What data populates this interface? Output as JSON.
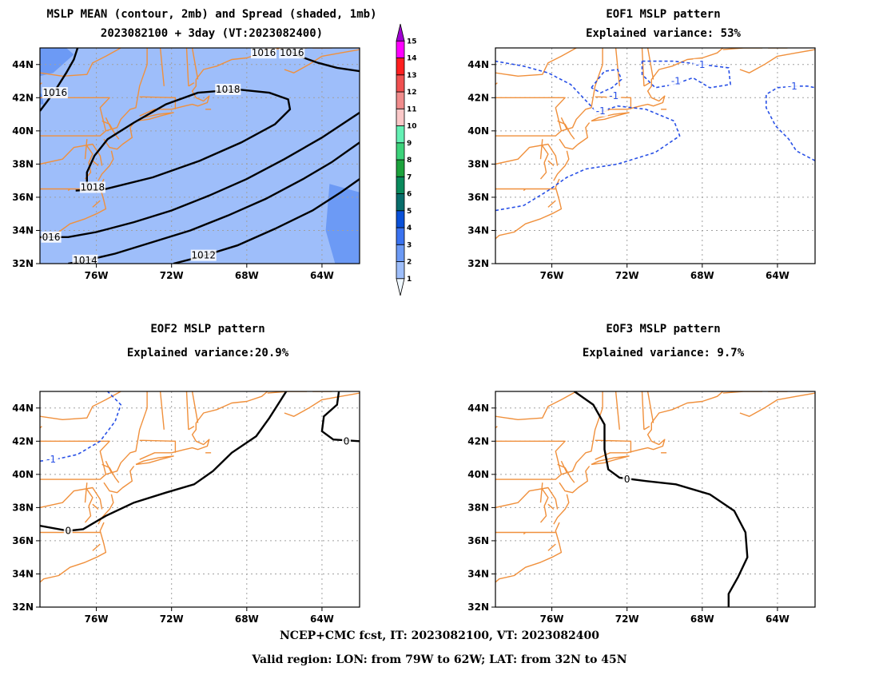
{
  "panels": {
    "p1": {
      "title1": "MSLP MEAN (contour, 2mb) and Spread (shaded, 1mb)",
      "title2": "2023082100 + 3day (VT:2023082400)"
    },
    "p2": {
      "title1": "EOF1 MSLP pattern",
      "title2": "Explained variance: 53%"
    },
    "p3": {
      "title1": "EOF2 MSLP pattern",
      "title2": "Explained variance:20.9%"
    },
    "p4": {
      "title1": "EOF3 MSLP pattern",
      "title2": "Explained variance: 9.7%"
    }
  },
  "footer": {
    "line1": "NCEP+CMC fcst, IT: 2023082100, VT: 2023082400",
    "line2": "Valid region: LON: from 79W to 62W; LAT: from 32N to 45N"
  },
  "chart_data": [
    {
      "type": "map-contour",
      "id": "p1",
      "xlim": [
        -79,
        -62
      ],
      "ylim": [
        32,
        45
      ],
      "x_ticks": [
        {
          "value": -76,
          "label": "76W"
        },
        {
          "value": -72,
          "label": "72W"
        },
        {
          "value": -68,
          "label": "68W"
        },
        {
          "value": -64,
          "label": "64W"
        }
      ],
      "y_ticks": [
        {
          "value": 32,
          "label": "32N"
        },
        {
          "value": 34,
          "label": "34N"
        },
        {
          "value": 36,
          "label": "36N"
        },
        {
          "value": 38,
          "label": "38N"
        },
        {
          "value": 40,
          "label": "40N"
        },
        {
          "value": 42,
          "label": "42N"
        },
        {
          "value": 44,
          "label": "44N"
        }
      ],
      "grid": true,
      "shading": {
        "base_level": 2,
        "base_color": "#9ebefa",
        "patches": [
          {
            "level": 3,
            "color": "#6c9af5",
            "points": [
              [
                -79,
                45
              ],
              [
                -79,
                43.3
              ],
              [
                -78.3,
                43.5
              ],
              [
                -77.2,
                44.6
              ],
              [
                -77.6,
                45
              ]
            ]
          },
          {
            "level": 3,
            "color": "#6c9af5",
            "points": [
              [
                -79,
                41.6
              ],
              [
                -78.8,
                41.6
              ],
              [
                -78.9,
                42.2
              ],
              [
                -79,
                42.3
              ]
            ]
          },
          {
            "level": 3,
            "color": "#6c9af5",
            "points": [
              [
                -63.6,
                36.8
              ],
              [
                -62,
                36.3
              ],
              [
                -62,
                32
              ],
              [
                -63.3,
                32
              ],
              [
                -63.8,
                34
              ]
            ]
          }
        ]
      },
      "contours": [
        {
          "level": 1016,
          "label": "1016",
          "points": [
            [
              -77,
              45
            ],
            [
              -77.2,
              44.3
            ],
            [
              -77.6,
              43.5
            ],
            [
              -78.1,
              42.6
            ],
            [
              -78.6,
              41.8
            ],
            [
              -79,
              41.2
            ]
          ],
          "labels_at": [
            [
              -78.2,
              42.3
            ]
          ]
        },
        {
          "level": 1016,
          "label": "1016",
          "points": [
            [
              -66,
              45
            ],
            [
              -65.2,
              44.5
            ],
            [
              -64.2,
              44.1
            ],
            [
              -63.2,
              43.8
            ],
            [
              -62,
              43.6
            ]
          ],
          "labels_at": [
            [
              -67.1,
              44.7
            ],
            [
              -65.6,
              44.7
            ]
          ]
        },
        {
          "level": 1018,
          "label": "1018",
          "points": [
            [
              -76.5,
              36.6
            ],
            [
              -76.5,
              37.5
            ],
            [
              -76.1,
              38.5
            ],
            [
              -75.4,
              39.5
            ],
            [
              -74,
              40.5
            ],
            [
              -72.3,
              41.6
            ],
            [
              -70.6,
              42.3
            ],
            [
              -68.5,
              42.5
            ],
            [
              -66.8,
              42.3
            ],
            [
              -65.8,
              41.9
            ],
            [
              -65.7,
              41.3
            ],
            [
              -66.5,
              40.4
            ],
            [
              -68.3,
              39.3
            ],
            [
              -70.5,
              38.2
            ],
            [
              -73,
              37.2
            ],
            [
              -75.5,
              36.5
            ],
            [
              -77.1,
              36.4
            ]
          ],
          "labels_at": [
            [
              -69,
              42.5
            ],
            [
              -76.2,
              36.6
            ]
          ]
        },
        {
          "level": 1016,
          "label": "016",
          "points": [
            [
              -79,
              33.6
            ],
            [
              -77.5,
              33.6
            ],
            [
              -76,
              33.9
            ],
            [
              -74,
              34.5
            ],
            [
              -72,
              35.2
            ],
            [
              -70,
              36.1
            ],
            [
              -68,
              37.1
            ],
            [
              -66,
              38.3
            ],
            [
              -64,
              39.6
            ],
            [
              -62,
              41.1
            ]
          ],
          "labels_at": [
            [
              -78.4,
              33.6
            ]
          ]
        },
        {
          "level": 1014,
          "label": "1014",
          "points": [
            [
              -77.5,
              32
            ],
            [
              -76.5,
              32.2
            ],
            [
              -75,
              32.6
            ],
            [
              -73,
              33.3
            ],
            [
              -71,
              34
            ],
            [
              -69,
              34.9
            ],
            [
              -67,
              35.9
            ],
            [
              -65,
              37.1
            ],
            [
              -63.5,
              38.1
            ],
            [
              -62,
              39.3
            ]
          ],
          "labels_at": [
            [
              -76.6,
              32.2
            ]
          ]
        },
        {
          "level": 1012,
          "label": "1012",
          "points": [
            [
              -71.9,
              32
            ],
            [
              -70.5,
              32.4
            ],
            [
              -68.5,
              33.1
            ],
            [
              -66.5,
              34.1
            ],
            [
              -64.5,
              35.2
            ],
            [
              -63,
              36.3
            ],
            [
              -62,
              37.1
            ]
          ],
          "labels_at": [
            [
              -70.3,
              32.5
            ]
          ]
        }
      ],
      "colorbar": {
        "levels": [
          1,
          2,
          3,
          4,
          5,
          6,
          7,
          8,
          9,
          10,
          11,
          12,
          13,
          14,
          15
        ],
        "colors": [
          "#f0f8ff",
          "#9ebefa",
          "#6c9af5",
          "#3a72f0",
          "#0a50d8",
          "#086d6b",
          "#098a5c",
          "#1ca23c",
          "#3cd27a",
          "#64f0b4",
          "#fac8c8",
          "#f08c8c",
          "#f05050",
          "#ff2020",
          "#ff00ff",
          "#a000d2"
        ]
      }
    },
    {
      "type": "map-contour",
      "id": "p2",
      "xlim": [
        -79,
        -62
      ],
      "ylim": [
        32,
        45
      ],
      "x_ticks": [
        {
          "value": -76,
          "label": "76W"
        },
        {
          "value": -72,
          "label": "72W"
        },
        {
          "value": -68,
          "label": "68W"
        },
        {
          "value": -64,
          "label": "64W"
        }
      ],
      "y_ticks": [
        {
          "value": 32,
          "label": "32N"
        },
        {
          "value": 34,
          "label": "34N"
        },
        {
          "value": 36,
          "label": "36N"
        },
        {
          "value": 38,
          "label": "38N"
        },
        {
          "value": 40,
          "label": "40N"
        },
        {
          "value": 42,
          "label": "42N"
        },
        {
          "value": 44,
          "label": "44N"
        }
      ],
      "grid": true,
      "contours": [
        {
          "level": -1,
          "label": "-1",
          "dashed": true,
          "points": [
            [
              -79,
              35.2
            ],
            [
              -77.5,
              35.5
            ],
            [
              -76.2,
              36.4
            ],
            [
              -75.2,
              37.2
            ],
            [
              -74.2,
              37.7
            ],
            [
              -72.5,
              38
            ],
            [
              -70.5,
              38.7
            ],
            [
              -69.2,
              39.7
            ],
            [
              -69.5,
              40.6
            ],
            [
              -71,
              41.3
            ],
            [
              -72.5,
              41.5
            ],
            [
              -73.6,
              41.1
            ],
            [
              -74,
              41.6
            ],
            [
              -75,
              42.8
            ],
            [
              -76.2,
              43.5
            ],
            [
              -77.5,
              43.9
            ],
            [
              -79,
              44.2
            ]
          ],
          "labels_at": [
            [
              -73.4,
              41.2
            ]
          ]
        },
        {
          "level": -1,
          "label": "-1",
          "dashed": true,
          "points": [
            [
              -73.9,
              42.6
            ],
            [
              -73.2,
              43.6
            ],
            [
              -72.5,
              43.7
            ],
            [
              -72.3,
              43.1
            ],
            [
              -72.8,
              42.6
            ],
            [
              -73.4,
              42.3
            ],
            [
              -73.9,
              42.6
            ]
          ],
          "labels_at": [
            [
              -72.7,
              42.1
            ]
          ]
        },
        {
          "level": -1,
          "label": "-1",
          "dashed": true,
          "points": [
            [
              -71.2,
              44.2
            ],
            [
              -69.5,
              44.2
            ],
            [
              -68,
              44
            ],
            [
              -66.6,
              43.8
            ],
            [
              -66.5,
              42.8
            ],
            [
              -67.6,
              42.6
            ],
            [
              -68.5,
              43.2
            ],
            [
              -69.5,
              42.8
            ],
            [
              -70.5,
              42.6
            ],
            [
              -71.2,
              43.4
            ],
            [
              -71.2,
              44.2
            ]
          ],
          "labels_at": [
            [
              -68.1,
              44
            ],
            [
              -69.4,
              43
            ]
          ]
        },
        {
          "level": -1,
          "label": "-1",
          "dashed": true,
          "points": [
            [
              -62,
              38.2
            ],
            [
              -63,
              38.8
            ],
            [
              -63.4,
              39.5
            ],
            [
              -64.1,
              40.3
            ],
            [
              -64.6,
              41.4
            ],
            [
              -64.6,
              42.2
            ],
            [
              -64,
              42.6
            ],
            [
              -63.1,
              42.7
            ],
            [
              -62.4,
              42.7
            ],
            [
              -62,
              42.6
            ]
          ],
          "labels_at": [
            [
              -63.2,
              42.7
            ]
          ]
        }
      ]
    },
    {
      "type": "map-contour",
      "id": "p3",
      "xlim": [
        -79,
        -62
      ],
      "ylim": [
        32,
        45
      ],
      "x_ticks": [
        {
          "value": -76,
          "label": "76W"
        },
        {
          "value": -72,
          "label": "72W"
        },
        {
          "value": -68,
          "label": "68W"
        },
        {
          "value": -64,
          "label": "64W"
        }
      ],
      "y_ticks": [
        {
          "value": 32,
          "label": "32N"
        },
        {
          "value": 34,
          "label": "34N"
        },
        {
          "value": 36,
          "label": "36N"
        },
        {
          "value": 38,
          "label": "38N"
        },
        {
          "value": 40,
          "label": "40N"
        },
        {
          "value": 42,
          "label": "42N"
        },
        {
          "value": 44,
          "label": "44N"
        }
      ],
      "grid": true,
      "contours": [
        {
          "level": 0,
          "label": "0",
          "points": [
            [
              -79,
              36.9
            ],
            [
              -77.5,
              36.6
            ],
            [
              -76.7,
              36.7
            ],
            [
              -75.5,
              37.5
            ],
            [
              -74,
              38.3
            ],
            [
              -72.3,
              38.9
            ],
            [
              -70.8,
              39.4
            ],
            [
              -69.8,
              40.2
            ],
            [
              -68.8,
              41.3
            ],
            [
              -67.5,
              42.3
            ],
            [
              -66.8,
              43.4
            ],
            [
              -65.9,
              45
            ]
          ],
          "labels_at": [
            [
              -77.5,
              36.6
            ]
          ]
        },
        {
          "level": 0,
          "label": "0",
          "points": [
            [
              -63.1,
              45
            ],
            [
              -63.2,
              44.2
            ],
            [
              -63.9,
              43.5
            ],
            [
              -64,
              42.6
            ],
            [
              -63.4,
              42.1
            ],
            [
              -62,
              42
            ]
          ],
          "labels_at": [
            [
              -62.7,
              42
            ]
          ]
        },
        {
          "level": -1,
          "label": "-1",
          "dashed": true,
          "points": [
            [
              -79,
              40.8
            ],
            [
              -78.2,
              40.9
            ],
            [
              -77,
              41.2
            ],
            [
              -75.8,
              42
            ],
            [
              -75,
              43.2
            ],
            [
              -74.7,
              44.2
            ],
            [
              -75.4,
              45
            ]
          ],
          "labels_at": [
            [
              -78.4,
              40.9
            ]
          ]
        }
      ]
    },
    {
      "type": "map-contour",
      "id": "p4",
      "xlim": [
        -79,
        -62
      ],
      "ylim": [
        32,
        45
      ],
      "x_ticks": [
        {
          "value": -76,
          "label": "76W"
        },
        {
          "value": -72,
          "label": "72W"
        },
        {
          "value": -68,
          "label": "68W"
        },
        {
          "value": -64,
          "label": "64W"
        }
      ],
      "y_ticks": [
        {
          "value": 32,
          "label": "32N"
        },
        {
          "value": 34,
          "label": "34N"
        },
        {
          "value": 36,
          "label": "36N"
        },
        {
          "value": 38,
          "label": "38N"
        },
        {
          "value": 40,
          "label": "40N"
        },
        {
          "value": 42,
          "label": "42N"
        },
        {
          "value": 44,
          "label": "44N"
        }
      ],
      "grid": true,
      "contours": [
        {
          "level": 0,
          "label": "0",
          "points": [
            [
              -74.8,
              45
            ],
            [
              -73.8,
              44.2
            ],
            [
              -73.2,
              43
            ],
            [
              -73.2,
              41.5
            ],
            [
              -73,
              40.3
            ],
            [
              -72.4,
              39.8
            ],
            [
              -71,
              39.6
            ],
            [
              -69.4,
              39.4
            ],
            [
              -67.6,
              38.8
            ],
            [
              -66.3,
              37.8
            ],
            [
              -65.7,
              36.5
            ],
            [
              -65.6,
              35
            ],
            [
              -66.1,
              33.8
            ],
            [
              -66.6,
              32.8
            ],
            [
              -66.6,
              32
            ]
          ],
          "labels_at": [
            [
              -72,
              39.7
            ]
          ]
        }
      ]
    }
  ]
}
